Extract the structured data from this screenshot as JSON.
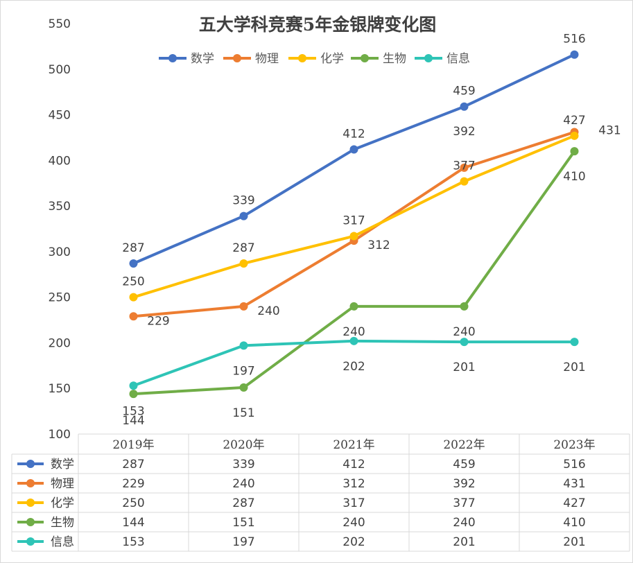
{
  "chart_data": {
    "type": "line",
    "title": "五大学科竞赛5年金银牌变化图",
    "categories": [
      "2019年",
      "2020年",
      "2021年",
      "2022年",
      "2023年"
    ],
    "ylim": [
      100,
      550
    ],
    "yticks": [
      100,
      150,
      200,
      250,
      300,
      350,
      400,
      450,
      500,
      550
    ],
    "grid": false,
    "legend": "top",
    "data_table": true,
    "series": [
      {
        "name": "数学",
        "color": "#4472C4",
        "values": [
          287,
          339,
          412,
          459,
          516
        ]
      },
      {
        "name": "物理",
        "color": "#ED7D31",
        "values": [
          229,
          240,
          312,
          392,
          431
        ]
      },
      {
        "name": "化学",
        "color": "#FFC000",
        "values": [
          250,
          287,
          317,
          377,
          427
        ]
      },
      {
        "name": "生物",
        "color": "#70AD47",
        "values": [
          144,
          151,
          240,
          240,
          410
        ]
      },
      {
        "name": "信息",
        "color": "#2EC4B6",
        "values": [
          153,
          197,
          202,
          201,
          201
        ]
      }
    ]
  }
}
